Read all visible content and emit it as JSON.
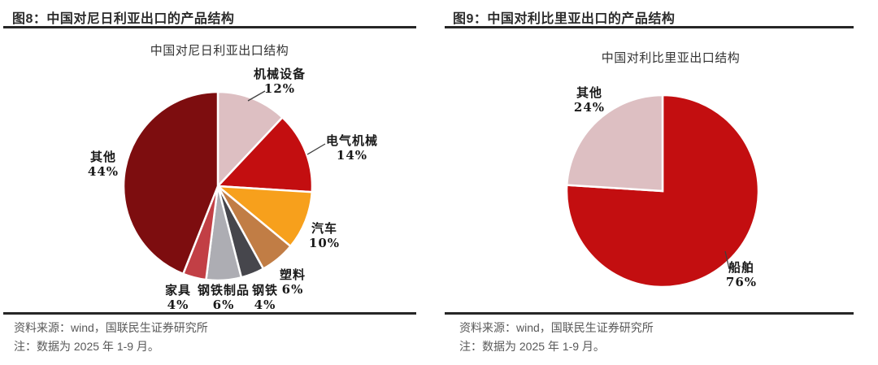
{
  "panels": [
    {
      "figure_header": "图8：中国对尼日利亚出口的产品结构",
      "source": "资料来源：wind，国联民生证券研究所",
      "note": "注：数据为 2025 年 1-9 月。"
    },
    {
      "figure_header": "图9：中国对利比里亚出口的产品结构",
      "source": "资料来源：wind，国联民生证券研究所",
      "note": "注：数据为 2025 年 1-9 月。"
    }
  ],
  "chart_data": [
    {
      "type": "pie",
      "title": "中国对尼日利亚出口结构",
      "start_angle_deg": 0,
      "direction": "clockwise",
      "label_position": "outside",
      "legend": "none",
      "slices": [
        {
          "label": "机械设备",
          "value": 12,
          "pct_text": "12%",
          "color": "#ddbfc2"
        },
        {
          "label": "电气机械",
          "value": 14,
          "pct_text": "14%",
          "color": "#c30e10"
        },
        {
          "label": "汽车",
          "value": 10,
          "pct_text": "10%",
          "color": "#f7a01c"
        },
        {
          "label": "塑料",
          "value": 6,
          "pct_text": "6%",
          "color": "#c17d45"
        },
        {
          "label": "钢铁",
          "value": 4,
          "pct_text": "4%",
          "color": "#46464c"
        },
        {
          "label": "钢铁制品",
          "value": 6,
          "pct_text": "6%",
          "color": "#adadb3"
        },
        {
          "label": "家具",
          "value": 4,
          "pct_text": "4%",
          "color": "#c23f45"
        },
        {
          "label": "其他",
          "value": 44,
          "pct_text": "44%",
          "color": "#7d0d0f"
        }
      ]
    },
    {
      "type": "pie",
      "title": "中国对利比里亚出口结构",
      "start_angle_deg": 0,
      "direction": "clockwise",
      "label_position": "outside",
      "legend": "none",
      "slices": [
        {
          "label": "船舶",
          "value": 76,
          "pct_text": "76%",
          "color": "#c30e10"
        },
        {
          "label": "其他",
          "value": 24,
          "pct_text": "24%",
          "color": "#ddbfc2"
        }
      ]
    }
  ],
  "style": {
    "accent_red": "#c30e10",
    "dark_red": "#7d0d0f",
    "pink": "#ddbfc2",
    "rule_color": "#262626",
    "footer_text_color": "#595959"
  }
}
